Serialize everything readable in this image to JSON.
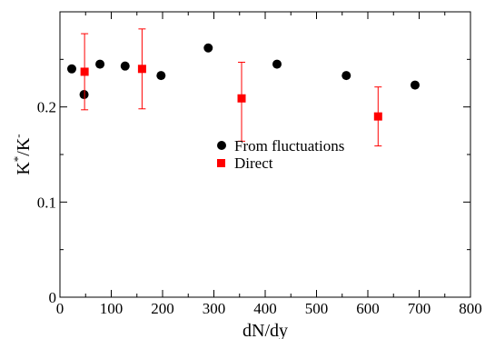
{
  "chart_data": {
    "type": "scatter",
    "title": "",
    "xlabel": "dN/dy",
    "ylabel_base": "K",
    "ylabel_sup1": "*",
    "ylabel_mid": "/K",
    "ylabel_sup2": "-",
    "xlim": [
      0,
      800
    ],
    "ylim": [
      0,
      0.3
    ],
    "x_ticks": [
      0,
      100,
      200,
      300,
      400,
      500,
      600,
      700,
      800
    ],
    "x_tick_labels": [
      "0",
      "100",
      "200",
      "300",
      "400",
      "500",
      "600",
      "700",
      "800"
    ],
    "y_ticks": [
      0,
      0.1,
      0.2
    ],
    "y_tick_labels": [
      "0",
      "0.1",
      "0.2"
    ],
    "grid": false,
    "legend_position": "center-right",
    "series": [
      {
        "name": "From fluctuations",
        "marker": "circle",
        "color": "#000000",
        "x": [
          23,
          47,
          78,
          127,
          197,
          289,
          423,
          558,
          692
        ],
        "y": [
          0.24,
          0.213,
          0.245,
          0.243,
          0.233,
          0.262,
          0.245,
          0.233,
          0.223
        ]
      },
      {
        "name": "Direct",
        "marker": "square",
        "color": "#ff0000",
        "x": [
          48,
          160,
          354,
          620
        ],
        "y": [
          0.237,
          0.24,
          0.209,
          0.19
        ],
        "err_low": [
          0.04,
          0.042,
          0.045,
          0.031
        ],
        "err_high": [
          0.04,
          0.042,
          0.038,
          0.031
        ]
      }
    ]
  }
}
